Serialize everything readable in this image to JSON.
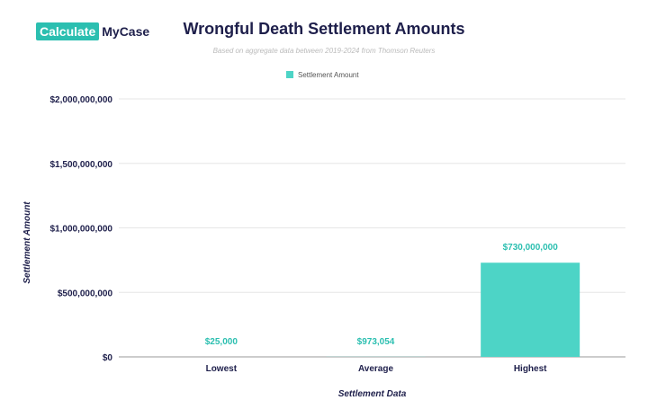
{
  "logo": {
    "part1": "Calculate",
    "part2": "MyCase"
  },
  "chart_data": {
    "type": "bar",
    "title": "Wrongful Death Settlement Amounts",
    "subtitle": "Based on aggregate data between 2019-2024 from Thomson Reuters",
    "categories": [
      "Lowest",
      "Average",
      "Highest"
    ],
    "series": [
      {
        "name": "Settlement Amount",
        "values": [
          25000,
          973054,
          730000000
        ],
        "color": "#4dd4c6"
      }
    ],
    "data_labels": [
      "$25,000",
      "$973,054",
      "$730,000,000"
    ],
    "xlabel": "Settlement Data",
    "ylabel": "Settlement Amount",
    "ylim": [
      0,
      2000000000
    ],
    "yticks": [
      0,
      500000000,
      1000000000,
      1500000000,
      2000000000
    ],
    "ytick_labels": [
      "$0",
      "$500,000,000",
      "$1,000,000,000",
      "$1,500,000,000",
      "$2,000,000,000"
    ],
    "grid": true,
    "legend": "top-center"
  }
}
